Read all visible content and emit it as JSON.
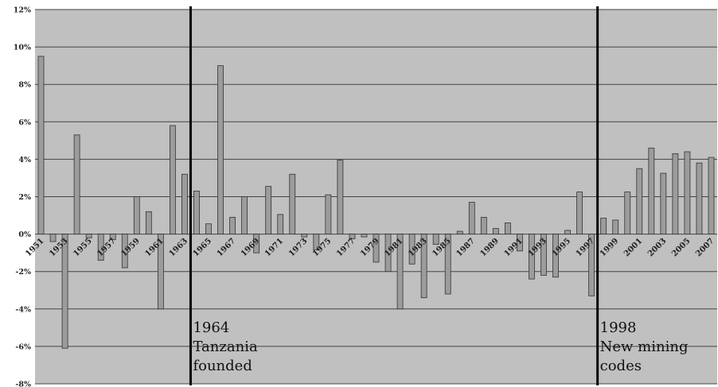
{
  "chart_data": {
    "type": "bar",
    "title": "",
    "xlabel": "",
    "ylabel": "",
    "ylim": [
      -8,
      12
    ],
    "ytick_step": 2,
    "ytick_suffix": "%",
    "grid": true,
    "legend": "none",
    "colors": {
      "plot_bg": "#c0c0c0",
      "bar_fill": "#9c9c9c",
      "bar_stroke": "#333333",
      "grid": "#444444",
      "marker": "#000000"
    },
    "x": [
      1951,
      1952,
      1953,
      1954,
      1955,
      1956,
      1957,
      1958,
      1959,
      1960,
      1961,
      1962,
      1963,
      1964,
      1965,
      1966,
      1967,
      1968,
      1969,
      1970,
      1971,
      1972,
      1973,
      1974,
      1975,
      1976,
      1977,
      1978,
      1979,
      1980,
      1981,
      1982,
      1983,
      1984,
      1985,
      1986,
      1987,
      1988,
      1989,
      1990,
      1991,
      1992,
      1993,
      1994,
      1995,
      1996,
      1997,
      1998,
      1999,
      2000,
      2001,
      2002,
      2003,
      2004,
      2005,
      2006,
      2007
    ],
    "values": [
      9.5,
      -0.4,
      -6.1,
      5.3,
      -0.2,
      -1.4,
      -0.3,
      -1.8,
      2.0,
      1.2,
      -4.0,
      5.8,
      3.2,
      2.3,
      0.55,
      9.0,
      0.9,
      2.0,
      -1.0,
      2.55,
      1.05,
      3.2,
      -0.15,
      -0.85,
      2.1,
      3.95,
      -0.25,
      -0.15,
      -1.5,
      -2.0,
      -4.0,
      -1.6,
      -3.4,
      -0.55,
      -3.2,
      0.15,
      1.7,
      0.9,
      0.3,
      0.6,
      -0.9,
      -2.4,
      -2.2,
      -2.3,
      0.2,
      2.25,
      -3.3,
      0.85,
      0.75,
      2.25,
      3.5,
      4.6,
      3.25,
      4.3,
      4.4,
      3.8,
      4.1
    ],
    "tick_labels": [
      "1951",
      "1953",
      "1955",
      "1957",
      "1959",
      "1961",
      "1963",
      "1965",
      "1967",
      "1969",
      "1971",
      "1973",
      "1975",
      "1977",
      "1979",
      "1981",
      "1983",
      "1985",
      "1987",
      "1989",
      "1991",
      "1993",
      "1995",
      "1997",
      "1999",
      "2001",
      "2003",
      "2005",
      "2007"
    ],
    "annotations": [
      {
        "at_year": 1964,
        "lines": [
          "1964",
          "Tanzania",
          "founded"
        ]
      },
      {
        "at_year": 1998,
        "lines": [
          "1998",
          "New mining",
          "codes"
        ]
      }
    ]
  }
}
